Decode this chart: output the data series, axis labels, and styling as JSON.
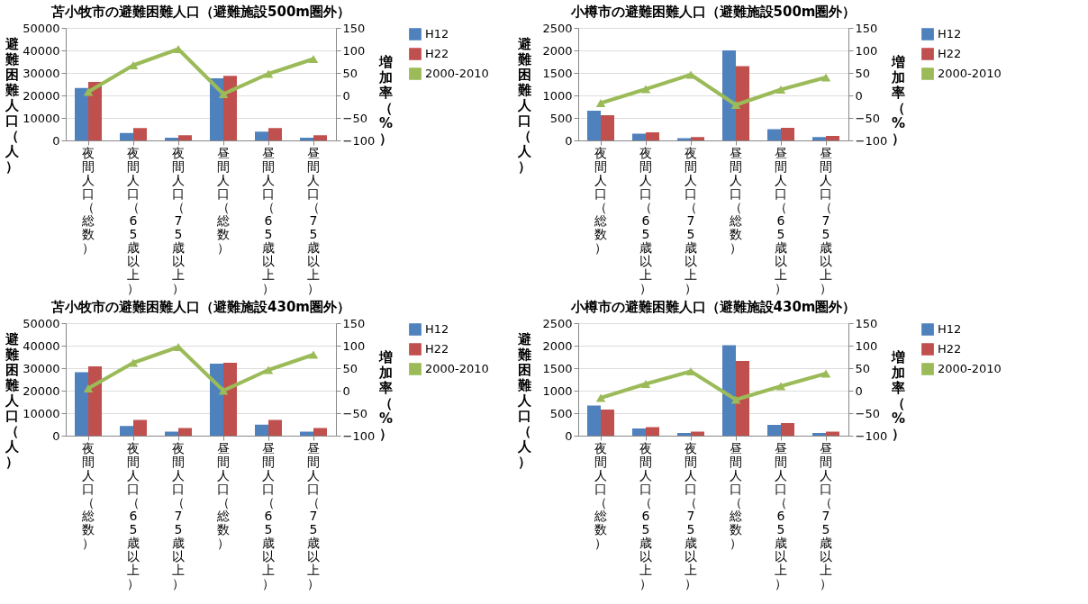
{
  "chart_data": [
    {
      "type": "bar",
      "title": "苫小牧市の避難困難人口（避難施設500m圏外）",
      "ylabel": "避難困難人口（人）",
      "y2label": "増加率（%）",
      "categories": [
        "夜間人口（総数）",
        "夜間人口（65歳以上）",
        "夜間人口（75歳以上）",
        "昼間人口（総数）",
        "昼間人口（65歳以上）",
        "昼間人口（75歳以上）"
      ],
      "ylim": [
        0,
        50000
      ],
      "yticks": [
        0,
        10000,
        20000,
        30000,
        40000,
        50000
      ],
      "y2lim": [
        -100,
        150
      ],
      "y2ticks": [
        -100,
        -50,
        0,
        50,
        100,
        150
      ],
      "grid": "y",
      "legend": "right",
      "series": [
        {
          "name": "H12",
          "color": "#4f81bd",
          "values": [
            23300,
            3300,
            1200,
            27600,
            3900,
            1200
          ]
        },
        {
          "name": "H22",
          "color": "#c0504d",
          "values": [
            26000,
            5500,
            2300,
            28700,
            5500,
            2300
          ]
        },
        {
          "name": "2000-2010",
          "type": "line",
          "axis": "y2",
          "marker": "triangle",
          "color": "#9bbb59",
          "values": [
            8,
            67,
            103,
            3,
            48,
            81
          ]
        }
      ]
    },
    {
      "type": "bar",
      "title": "小樽市の避難困難人口（避難施設500m圏外）",
      "ylabel": "避難困難人口（人）",
      "y2label": "増加率（%）",
      "categories": [
        "夜間人口（総数）",
        "夜間人口（65歳以上）",
        "夜間人口（75歳以上）",
        "昼間人口（総数）",
        "昼間人口（65歳以上）",
        "昼間人口（75歳以上）"
      ],
      "ylim": [
        0,
        2500
      ],
      "yticks": [
        0,
        500,
        1000,
        1500,
        2000,
        2500
      ],
      "y2lim": [
        -100,
        150
      ],
      "y2ticks": [
        -100,
        -50,
        0,
        50,
        100,
        150
      ],
      "grid": "y",
      "legend": "right",
      "series": [
        {
          "name": "H12",
          "color": "#4f81bd",
          "values": [
            660,
            150,
            50,
            2000,
            250,
            75
          ]
        },
        {
          "name": "H22",
          "color": "#c0504d",
          "values": [
            560,
            180,
            75,
            1650,
            280,
            100
          ]
        },
        {
          "name": "2000-2010",
          "type": "line",
          "axis": "y2",
          "marker": "triangle",
          "color": "#9bbb59",
          "values": [
            -17,
            14,
            46,
            -21,
            13,
            40
          ]
        }
      ]
    },
    {
      "type": "bar",
      "title": "苫小牧市の避難困難人口（避難施設430m圏外）",
      "ylabel": "避難困難人口（人）",
      "y2label": "増加率（%）",
      "categories": [
        "夜間人口（総数）",
        "夜間人口（65歳以上）",
        "夜間人口（75歳以上）",
        "昼間人口（総数）",
        "昼間人口（65歳以上）",
        "昼間人口（75歳以上）"
      ],
      "ylim": [
        0,
        50000
      ],
      "yticks": [
        0,
        10000,
        20000,
        30000,
        40000,
        50000
      ],
      "y2lim": [
        -100,
        150
      ],
      "y2ticks": [
        -100,
        -50,
        0,
        50,
        100,
        150
      ],
      "grid": "y",
      "legend": "right",
      "series": [
        {
          "name": "H12",
          "color": "#4f81bd",
          "values": [
            28200,
            4300,
            1800,
            32000,
            4900,
            1800
          ]
        },
        {
          "name": "H22",
          "color": "#c0504d",
          "values": [
            30800,
            7000,
            3400,
            32400,
            7000,
            3400
          ]
        },
        {
          "name": "2000-2010",
          "type": "line",
          "axis": "y2",
          "marker": "triangle",
          "color": "#9bbb59",
          "values": [
            5,
            62,
            97,
            0,
            46,
            80
          ]
        }
      ]
    },
    {
      "type": "bar",
      "title": "小樽市の避難困難人口（避難施設430m圏外）",
      "ylabel": "避難困難人口（人）",
      "y2label": "増加率（%）",
      "categories": [
        "夜間人口（総数）",
        "夜間人口（65歳以上）",
        "夜間人口（75歳以上）",
        "昼間人口（総数）",
        "昼間人口（65歳以上）",
        "昼間人口（75歳以上）"
      ],
      "ylim": [
        0,
        2500
      ],
      "yticks": [
        0,
        500,
        1000,
        1500,
        2000,
        2500
      ],
      "y2lim": [
        -100,
        150
      ],
      "y2ticks": [
        -100,
        -50,
        0,
        50,
        100,
        150
      ],
      "grid": "y",
      "legend": "right",
      "series": [
        {
          "name": "H12",
          "color": "#4f81bd",
          "values": [
            670,
            160,
            60,
            2010,
            240,
            60
          ]
        },
        {
          "name": "H22",
          "color": "#c0504d",
          "values": [
            580,
            190,
            90,
            1660,
            280,
            90
          ]
        },
        {
          "name": "2000-2010",
          "type": "line",
          "axis": "y2",
          "marker": "triangle",
          "color": "#9bbb59",
          "values": [
            -16,
            15,
            43,
            -20,
            10,
            38
          ]
        }
      ]
    }
  ]
}
